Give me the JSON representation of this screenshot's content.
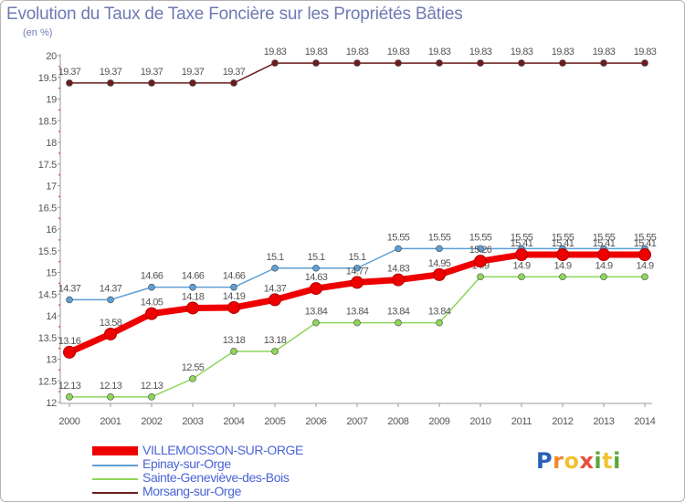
{
  "chart_data": {
    "type": "line",
    "title": "Evolution du Taux de Taxe Foncière sur les Propriétés Bâties",
    "ylabel": "(en %)",
    "xlabel": "",
    "categories": [
      "2000",
      "2001",
      "2002",
      "2003",
      "2004",
      "2005",
      "2006",
      "2007",
      "2008",
      "2009",
      "2010",
      "2011",
      "2012",
      "2013",
      "2014"
    ],
    "ylim": [
      12,
      20
    ],
    "yticks": [
      "12",
      "12.5",
      "13",
      "13.5",
      "14",
      "14.5",
      "15",
      "15.5",
      "16",
      "16.5",
      "17",
      "17.5",
      "18",
      "18.5",
      "19",
      "19.5",
      "20"
    ],
    "grid": false,
    "series": [
      {
        "name": "Morsang-sur-Orge",
        "color": "#6b1d1d",
        "values": [
          19.37,
          19.37,
          19.37,
          19.37,
          19.37,
          19.83,
          19.83,
          19.83,
          19.83,
          19.83,
          19.83,
          19.83,
          19.83,
          19.83,
          19.83
        ],
        "labels": [
          "19.37",
          "19.37",
          "19.37",
          "19.37",
          "19.37",
          "19.83",
          "19.83",
          "19.83",
          "19.83",
          "19.83",
          "19.83",
          "19.83",
          "19.83",
          "19.83",
          "19.83"
        ]
      },
      {
        "name": "Sainte-Geneviève-des-Bois",
        "color": "#8ed65a",
        "values": [
          12.13,
          12.13,
          12.13,
          12.55,
          13.18,
          13.18,
          13.84,
          13.84,
          13.84,
          13.84,
          14.9,
          14.9,
          14.9,
          14.9,
          14.9
        ],
        "labels": [
          "12.13",
          "12.13",
          "12.13",
          "12.55",
          "13.18",
          "13.18",
          "13.84",
          "13.84",
          "13.84",
          "13.84",
          "14.9",
          "14.9",
          "14.9",
          "14.9",
          "14.9"
        ]
      },
      {
        "name": "Epinay-sur-Orge",
        "color": "#5e9fd6",
        "values": [
          14.37,
          14.37,
          14.66,
          14.66,
          14.66,
          15.1,
          15.1,
          15.1,
          15.55,
          15.55,
          15.55,
          15.55,
          15.55,
          15.55,
          15.55
        ],
        "labels": [
          "14.37",
          "14.37",
          "14.66",
          "14.66",
          "14.66",
          "15.1",
          "15.1",
          "15.1",
          "15.55",
          "15.55",
          "15.55",
          "15.55",
          "15.55",
          "15.55",
          "15.55"
        ]
      },
      {
        "name": "VILLEMOISSON-SUR-ORGE",
        "color": "#ee0000",
        "values": [
          13.16,
          13.58,
          14.05,
          14.18,
          14.19,
          14.37,
          14.63,
          14.77,
          14.83,
          14.95,
          15.26,
          15.41,
          15.41,
          15.41,
          15.41
        ],
        "labels": [
          "13.16",
          "13.58",
          "14.05",
          "14.18",
          "14.19",
          "14.37",
          "14.63",
          "14.77",
          "14.83",
          "14.95",
          "15.26",
          "15.41",
          "15.41",
          "15.41",
          "15.41"
        ]
      }
    ],
    "legend_order": [
      "VILLEMOISSON-SUR-ORGE",
      "Epinay-sur-Orge",
      "Sainte-Geneviève-des-Bois",
      "Morsang-sur-Orge"
    ]
  },
  "logo": {
    "letters": [
      "P",
      "r",
      "o",
      "x",
      "i",
      "t",
      "i"
    ],
    "colors": [
      "#2b5fb8",
      "#ef8b2c",
      "#f1c232",
      "#e84f3d",
      "#5aa83a",
      "#f1c232",
      "#5aa83a"
    ]
  }
}
